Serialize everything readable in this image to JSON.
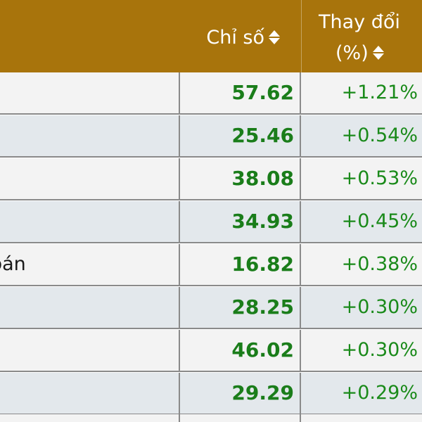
{
  "header": {
    "index_label": "Chỉ số",
    "change_label_line1": "Thay đổi",
    "change_label_line2": "(%)"
  },
  "colors": {
    "header_bg": "#a8740c",
    "positive": "#1a7d1a",
    "row_odd": "#f3f3f3",
    "row_even": "#e3e8ec"
  },
  "rows": [
    {
      "name": "",
      "index": "57.62",
      "change": "+1.21%"
    },
    {
      "name": "",
      "index": "25.46",
      "change": "+0.54%"
    },
    {
      "name": "",
      "index": "38.08",
      "change": "+0.53%"
    },
    {
      "name": "",
      "index": "34.93",
      "change": "+0.45%"
    },
    {
      "name": "bán",
      "index": "16.82",
      "change": "+0.38%"
    },
    {
      "name": "",
      "index": "28.25",
      "change": "+0.30%"
    },
    {
      "name": "",
      "index": "46.02",
      "change": "+0.30%"
    },
    {
      "name": "",
      "index": "29.29",
      "change": "+0.29%"
    }
  ]
}
